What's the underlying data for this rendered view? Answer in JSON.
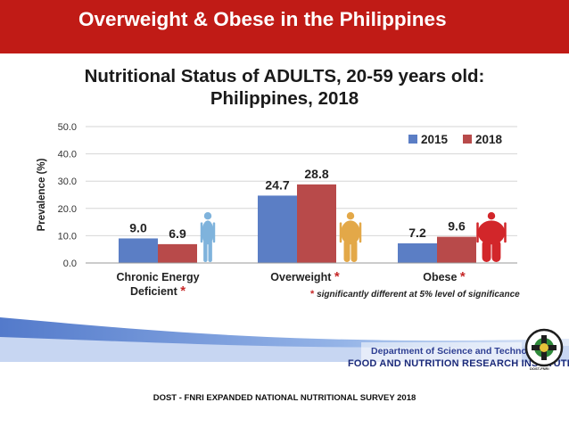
{
  "slide": {
    "title": "Overweight & Obese in the Philippines",
    "source": "DOST - FNRI EXPANDED NATIONAL NUTRITIONAL SURVEY 2018"
  },
  "chart_data": {
    "type": "bar",
    "title": "Nutritional Status of ADULTS, 20-59 years old:",
    "subtitle": "Philippines, 2018",
    "ylabel": "Prevalence (%)",
    "xlabel": "",
    "ylim": [
      0,
      50
    ],
    "yticks": [
      "0.0",
      "10.0",
      "20.0",
      "30.0",
      "40.0",
      "50.0"
    ],
    "categories": [
      {
        "line1": "Chronic Energy",
        "line2": "Deficient",
        "star": "*"
      },
      {
        "line1": "Overweight",
        "line2": "",
        "star": "*"
      },
      {
        "line1": "Obese",
        "line2": "",
        "star": "*"
      }
    ],
    "series": [
      {
        "name": "2015",
        "color": "#5b7ec5",
        "values": [
          9.0,
          24.7,
          7.2
        ],
        "labels": [
          "9.0",
          "24.7",
          "7.2"
        ]
      },
      {
        "name": "2018",
        "color": "#b84a4a",
        "values": [
          6.9,
          28.8,
          9.6
        ],
        "labels": [
          "6.9",
          "28.8",
          "9.6"
        ]
      }
    ],
    "legend_position": "top-right",
    "grid": "horizontal",
    "footnote": {
      "star": "*",
      "text": "significantly different at 5% level of significance"
    },
    "figure_icons": [
      {
        "name": "thin-person-icon",
        "color": "#7fb3dc"
      },
      {
        "name": "overweight-person-icon",
        "color": "#e3a848"
      },
      {
        "name": "obese-person-icon",
        "color": "#d2262a"
      }
    ]
  },
  "branding": {
    "department": "Department of Science and Technology",
    "institute": "FOOD AND NUTRITION RESEARCH INSTITUTE",
    "logo_caption": "DOST-FNRI",
    "accent": "#2e3f93"
  }
}
